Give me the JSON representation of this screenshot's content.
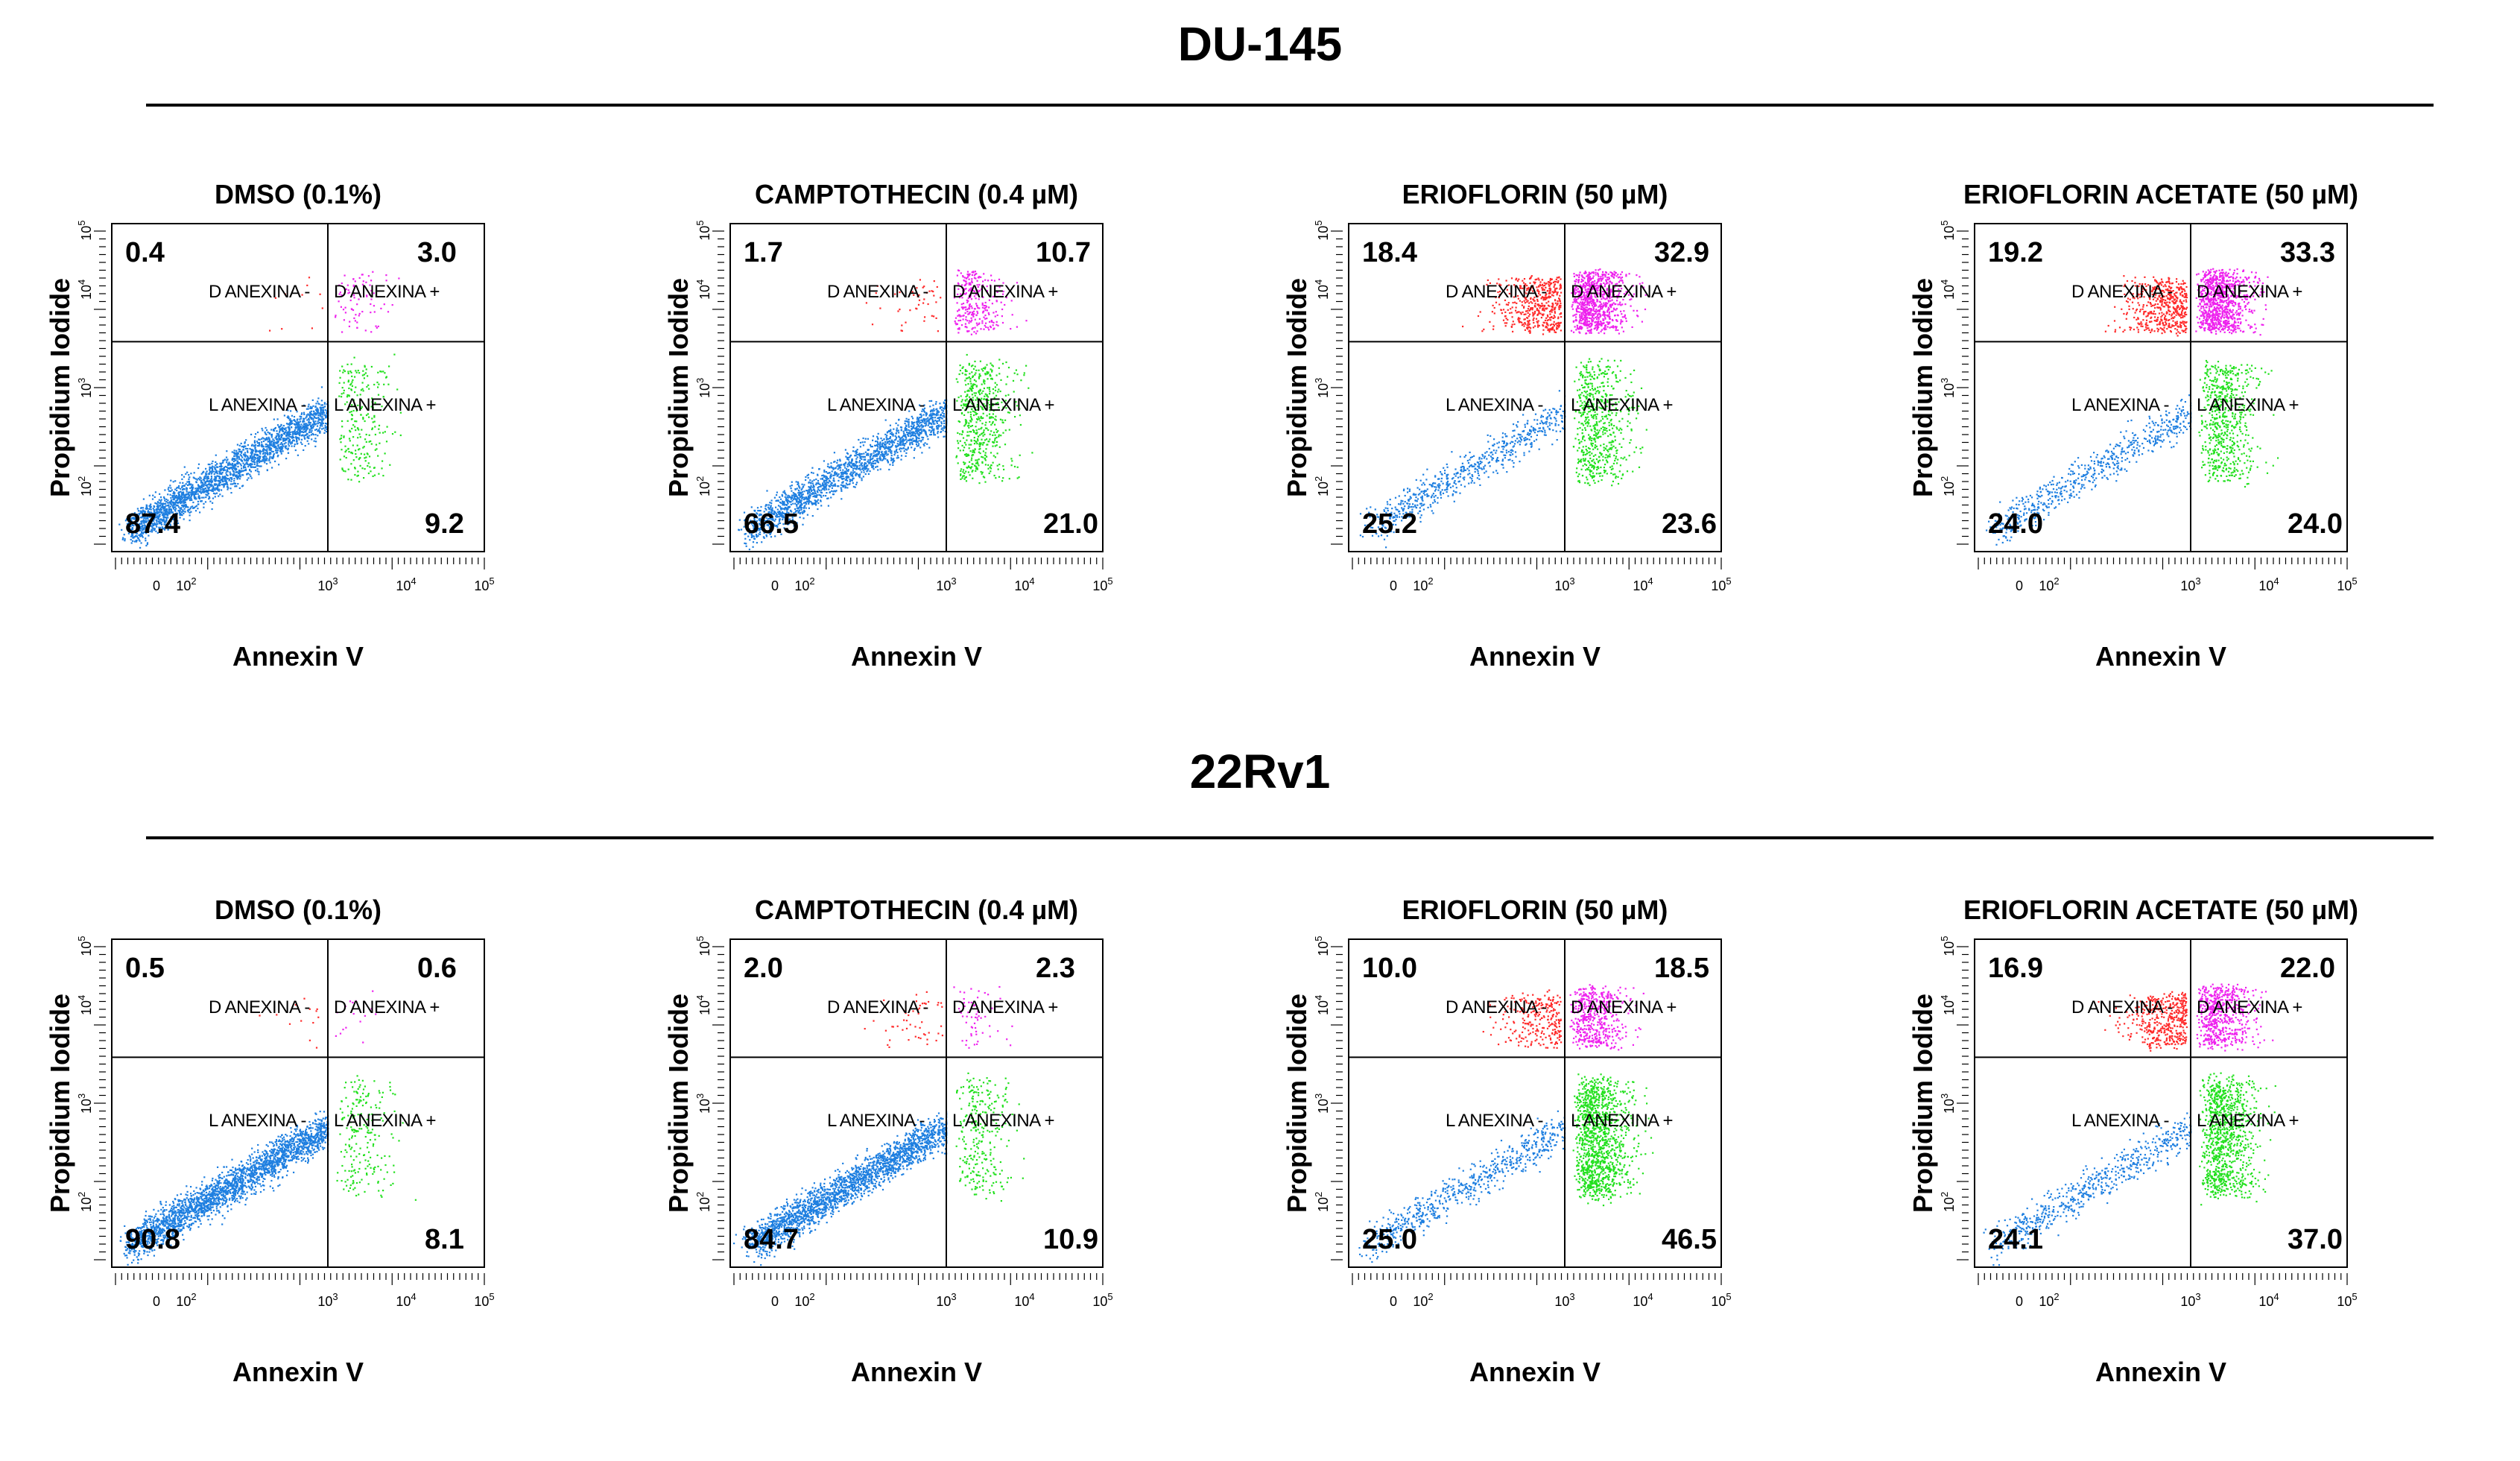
{
  "sections": [
    {
      "title": "DU-145"
    },
    {
      "title": "22Rv1"
    }
  ],
  "axis": {
    "xlabel": "Annexin V",
    "ylabel": "Propidium Iodide",
    "x_ticks": [
      "0",
      "10",
      "10",
      "10",
      "10"
    ],
    "x_exps": [
      "",
      "2",
      "3",
      "4",
      "5"
    ],
    "y_ticks": [
      "10",
      "10",
      "10",
      "10"
    ],
    "y_exps": [
      "2",
      "3",
      "4",
      "5"
    ]
  },
  "gate_labels": {
    "ul": "D ANEXINA -",
    "ur": "D ANEXINA +",
    "ll": "L ANEXINA -",
    "lr": "L ANEXINA +"
  },
  "colors": {
    "live_neg": "#1e7fe0",
    "live_pos": "#22e01e",
    "dead_neg": "#ff2a2a",
    "dead_pos": "#ee22ee"
  },
  "chart_data": [
    {
      "type": "scatter",
      "cell_line": "DU-145",
      "title": "DMSO (0.1%)",
      "xlabel": "Annexin V",
      "ylabel": "Propidium Iodide",
      "quadrants": {
        "ul": "0.4",
        "ur": "3.0",
        "ll": "87.4",
        "lr": "9.2"
      }
    },
    {
      "type": "scatter",
      "cell_line": "DU-145",
      "title": "CAMPTOTHECIN (0.4 µM)",
      "xlabel": "Annexin V",
      "ylabel": "Propidium Iodide",
      "quadrants": {
        "ul": "1.7",
        "ur": "10.7",
        "ll": "66.5",
        "lr": "21.0"
      }
    },
    {
      "type": "scatter",
      "cell_line": "DU-145",
      "title": "ERIOFLORIN (50 µM)",
      "xlabel": "Annexin V",
      "ylabel": "Propidium Iodide",
      "quadrants": {
        "ul": "18.4",
        "ur": "32.9",
        "ll": "25.2",
        "lr": "23.6"
      }
    },
    {
      "type": "scatter",
      "cell_line": "DU-145",
      "title": "ERIOFLORIN ACETATE (50 µM)",
      "xlabel": "Annexin V",
      "ylabel": "Propidium Iodide",
      "quadrants": {
        "ul": "19.2",
        "ur": "33.3",
        "ll": "24.0",
        "lr": "24.0"
      }
    },
    {
      "type": "scatter",
      "cell_line": "22Rv1",
      "title": "DMSO (0.1%)",
      "xlabel": "Annexin V",
      "ylabel": "Propidium Iodide",
      "quadrants": {
        "ul": "0.5",
        "ur": "0.6",
        "ll": "90.8",
        "lr": "8.1"
      }
    },
    {
      "type": "scatter",
      "cell_line": "22Rv1",
      "title": "CAMPTOTHECIN (0.4 µM)",
      "xlabel": "Annexin V",
      "ylabel": "Propidium Iodide",
      "quadrants": {
        "ul": "2.0",
        "ur": "2.3",
        "ll": "84.7",
        "lr": "10.9"
      }
    },
    {
      "type": "scatter",
      "cell_line": "22Rv1",
      "title": "ERIOFLORIN (50 µM)",
      "xlabel": "Annexin V",
      "ylabel": "Propidium Iodide",
      "quadrants": {
        "ul": "10.0",
        "ur": "18.5",
        "ll": "25.0",
        "lr": "46.5"
      }
    },
    {
      "type": "scatter",
      "cell_line": "22Rv1",
      "title": "ERIOFLORIN ACETATE (50 µM)",
      "xlabel": "Annexin V",
      "ylabel": "Propidium Iodide",
      "quadrants": {
        "ul": "16.9",
        "ur": "22.0",
        "ll": "24.1",
        "lr": "37.0"
      }
    }
  ]
}
